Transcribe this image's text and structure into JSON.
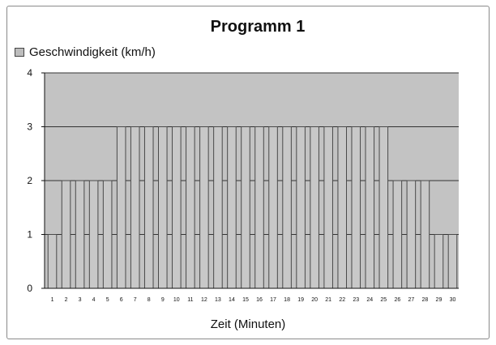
{
  "chart_data": {
    "type": "bar",
    "title": "Programm 1",
    "xlabel": "Zeit (Minuten)",
    "ylabel": "",
    "legend": {
      "position": "top-left",
      "entries": [
        "Geschwindigkeit (km/h)"
      ]
    },
    "grid": true,
    "ylim": [
      0,
      4
    ],
    "yticks": [
      "0",
      "1",
      "2",
      "3",
      "4"
    ],
    "categories": [
      "1",
      "2",
      "3",
      "4",
      "5",
      "6",
      "7",
      "8",
      "9",
      "10",
      "11",
      "12",
      "13",
      "14",
      "15",
      "16",
      "17",
      "18",
      "19",
      "20",
      "21",
      "22",
      "23",
      "24",
      "25",
      "26",
      "27",
      "28",
      "29",
      "30"
    ],
    "series": [
      {
        "name": "Geschwindigkeit (km/h)",
        "values": [
          1,
          2,
          2,
          2,
          2,
          3,
          3,
          3,
          3,
          3,
          3,
          3,
          3,
          3,
          3,
          3,
          3,
          3,
          3,
          3,
          3,
          3,
          3,
          3,
          3,
          2,
          2,
          2,
          1,
          1
        ]
      }
    ],
    "colors": {
      "plot_bg": "#c3c3c3",
      "bar_fill": "#c8c8c8",
      "bar_stroke": "#4a4a4a",
      "grid": "#333333"
    }
  }
}
